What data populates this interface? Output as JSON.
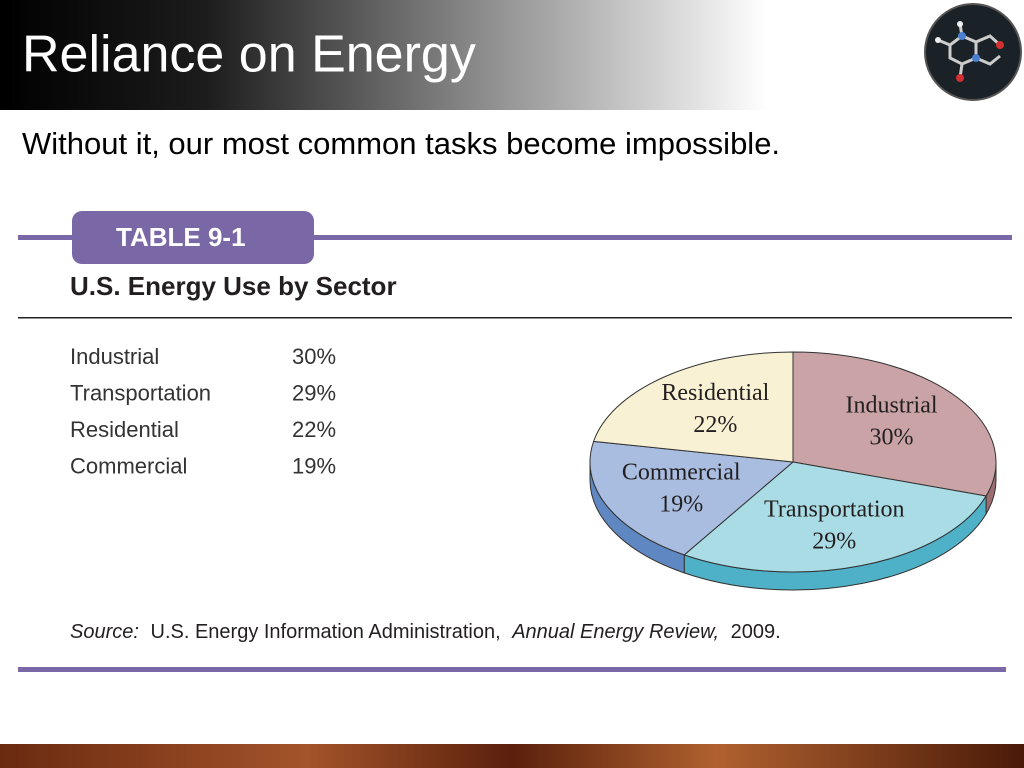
{
  "slide": {
    "title": "Reliance on Energy",
    "subtitle": "Without it, our most common tasks become impossible."
  },
  "table": {
    "label": "TABLE 9-1",
    "title": "U.S. Energy Use by Sector",
    "rows": [
      [
        "Industrial",
        "30%"
      ],
      [
        "Transportation",
        "29%"
      ],
      [
        "Residential",
        "22%"
      ],
      [
        "Commercial",
        "19%"
      ]
    ],
    "source": [
      "Source:",
      "U.S. Energy Information Administration,",
      "Annual Energy Review,",
      "2009."
    ]
  },
  "chart_data": {
    "type": "pie",
    "categories": [
      "Industrial",
      "Transportation",
      "Commercial",
      "Residential"
    ],
    "values": [
      30,
      29,
      19,
      22
    ],
    "value_labels": [
      "30%",
      "29%",
      "19%",
      "22%"
    ],
    "colors": [
      "#c9a3a5",
      "#a9dce4",
      "#a9bde1",
      "#f8f1d3"
    ],
    "side_colors": [
      "#9c6d70",
      "#4fb1c7",
      "#5f87c1",
      "#c9bf95"
    ]
  }
}
